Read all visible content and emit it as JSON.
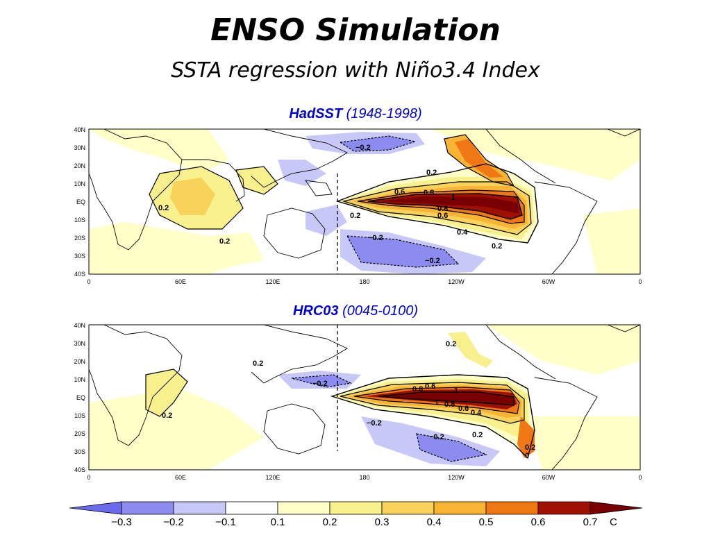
{
  "header": {
    "title": "ENSO Simulation",
    "subtitle": "SSTA regression with Niño3.4 Index"
  },
  "panels": [
    {
      "dataset": "HadSST",
      "period": "(1948-1998)",
      "lat_labels": [
        "40N",
        "30N",
        "20N",
        "10N",
        "EQ",
        "10S",
        "20S",
        "30S",
        "40S"
      ],
      "lon_labels": [
        "0",
        "60E",
        "120E",
        "180",
        "120W",
        "60W",
        "0"
      ],
      "contour_labels": [
        "−0.2",
        "0.2",
        "0.6",
        "0.8",
        "1",
        "0.2",
        "0.8",
        "0.6",
        "0.2",
        "−0.2",
        "0.4",
        "0.2",
        "−0.2",
        "0.2"
      ]
    },
    {
      "dataset": "HRC03",
      "period": "(0045-0100)",
      "lat_labels": [
        "40N",
        "30N",
        "20N",
        "10N",
        "EQ",
        "10S",
        "20S",
        "30S",
        "40S"
      ],
      "lon_labels": [
        "0",
        "60E",
        "120E",
        "180",
        "120W",
        "60W",
        "0"
      ],
      "contour_labels": [
        "0.2",
        "0.2",
        "−0.2",
        "0.8",
        "0.6",
        "1",
        "0.8",
        "0.6",
        "0.4",
        "0.2",
        "−0.2",
        "−0.2",
        "0.2",
        "0.2",
        "1",
        "0"
      ]
    }
  ],
  "colorbar": {
    "labels": [
      "−0.3",
      "−0.2",
      "−0.1",
      "0.1",
      "0.2",
      "0.3",
      "0.4",
      "0.5",
      "0.6",
      "0.7"
    ],
    "unit": "C",
    "colors": [
      "#6a6aee",
      "#8c8cf0",
      "#c8c8f8",
      "#ffffff",
      "#ffffc8",
      "#f8f08c",
      "#f8d25a",
      "#f8b432",
      "#f07814",
      "#a01000",
      "#780000"
    ]
  }
}
